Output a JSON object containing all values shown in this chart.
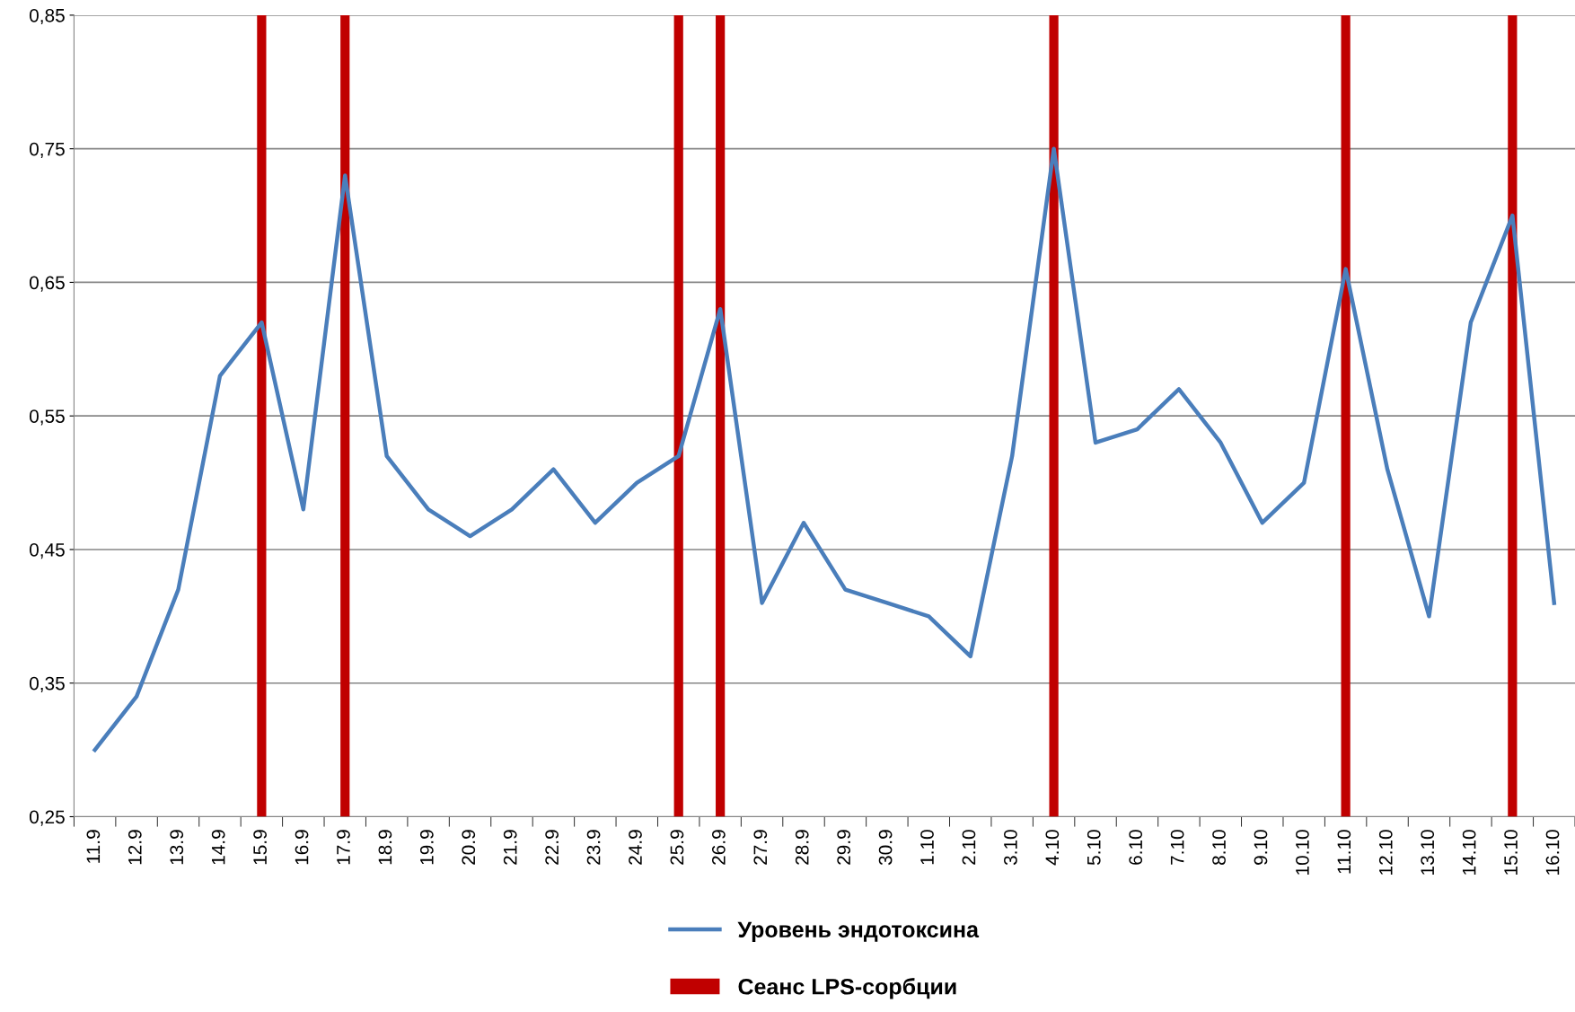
{
  "chart_data": {
    "type": "line",
    "categories": [
      "11.9",
      "12.9",
      "13.9",
      "14.9",
      "15.9",
      "16.9",
      "17.9",
      "18.9",
      "19.9",
      "20.9",
      "21.9",
      "22.9",
      "23.9",
      "24.9",
      "25.9",
      "26.9",
      "27.9",
      "28.9",
      "29.9",
      "30.9",
      "1.10",
      "2.10",
      "3.10",
      "4.10",
      "5.10",
      "6.10",
      "7.10",
      "8.10",
      "9.10",
      "10.10",
      "11.10",
      "12.10",
      "13.10",
      "14.10",
      "15.10",
      "16.10"
    ],
    "series": [
      {
        "name": "Уровень эндотоксина",
        "color": "#4a7ebb",
        "values": [
          0.3,
          0.34,
          0.42,
          0.58,
          0.62,
          0.48,
          0.73,
          0.52,
          0.48,
          0.46,
          0.48,
          0.51,
          0.47,
          0.5,
          0.52,
          0.63,
          0.41,
          0.47,
          0.42,
          0.41,
          0.4,
          0.37,
          0.52,
          0.75,
          0.53,
          0.54,
          0.57,
          0.53,
          0.47,
          0.5,
          0.66,
          0.51,
          0.4,
          0.62,
          0.7,
          0.41
        ]
      },
      {
        "name": "Сеанс LPS-сорбции",
        "type": "bar",
        "color": "#c00000",
        "values": [
          null,
          null,
          null,
          null,
          0.85,
          null,
          0.85,
          null,
          null,
          null,
          null,
          null,
          null,
          null,
          0.85,
          0.85,
          null,
          null,
          null,
          null,
          null,
          null,
          null,
          0.85,
          null,
          null,
          null,
          null,
          null,
          null,
          0.85,
          null,
          null,
          null,
          0.85,
          null
        ]
      }
    ],
    "ylim": [
      0.25,
      0.85
    ],
    "yticks": [
      {
        "value": 0.25,
        "label": "0,25"
      },
      {
        "value": 0.35,
        "label": "0,35"
      },
      {
        "value": 0.45,
        "label": "0,45"
      },
      {
        "value": 0.55,
        "label": "0,55"
      },
      {
        "value": 0.65,
        "label": "0,65"
      },
      {
        "value": 0.75,
        "label": "0,75"
      },
      {
        "value": 0.85,
        "label": "0,85"
      }
    ],
    "grid": "y",
    "legend": "bottom",
    "marker": "none",
    "line_style": "solid"
  }
}
